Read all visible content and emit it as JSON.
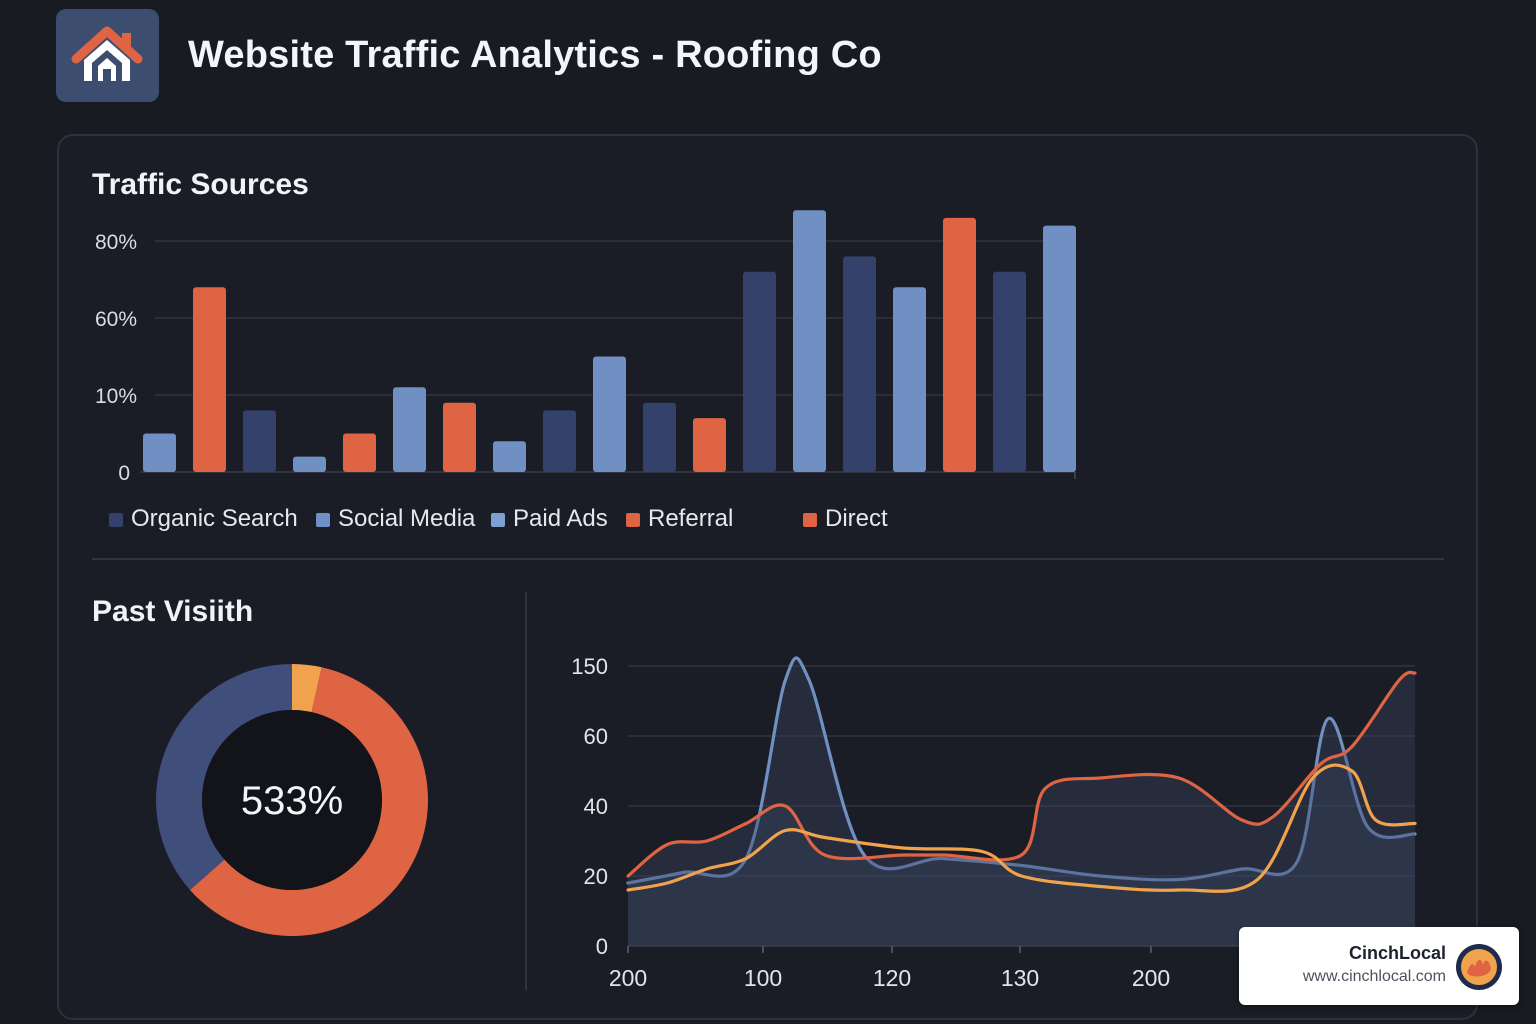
{
  "header": {
    "title": "Website Traffic Analytics - Roofing Co",
    "logo_icon": "house-roof-icon"
  },
  "colors": {
    "background": "#181b22",
    "navy": "#34416a",
    "steel_blue": "#7090c4",
    "orange": "#de6443",
    "amber": "#f0a24c"
  },
  "badge": {
    "name": "CinchLocal",
    "url": "www.cinchlocal.com",
    "icon": "cinchlocal-logo-icon"
  },
  "chart_data": [
    {
      "type": "bar",
      "title": "Traffic Sources",
      "y_ticks": [
        "80%",
        "60%",
        "10%",
        "0"
      ],
      "grid": true,
      "legend_position": "bottom",
      "legend": [
        {
          "label": "Organic Search",
          "color": "#34416a"
        },
        {
          "label": "Social Media",
          "color": "#6f8fc6"
        },
        {
          "label": "Paid Ads",
          "color": "#7e9fd2"
        },
        {
          "label": "Referral",
          "color": "#de6443"
        },
        {
          "label": "Direct",
          "color": "#de6443"
        }
      ],
      "bars": [
        {
          "level": 0.5,
          "color": "#7090c4"
        },
        {
          "level": 2.4,
          "color": "#de6443"
        },
        {
          "level": 0.8,
          "color": "#34416a"
        },
        {
          "level": 0.2,
          "color": "#7090c4"
        },
        {
          "level": 0.5,
          "color": "#de6443"
        },
        {
          "level": 1.1,
          "color": "#7090c4"
        },
        {
          "level": 0.9,
          "color": "#de6443"
        },
        {
          "level": 0.4,
          "color": "#7090c4"
        },
        {
          "level": 0.8,
          "color": "#34416a"
        },
        {
          "level": 1.5,
          "color": "#7090c4"
        },
        {
          "level": 0.9,
          "color": "#34416a"
        },
        {
          "level": 0.7,
          "color": "#de6443"
        },
        {
          "level": 2.6,
          "color": "#34416a"
        },
        {
          "level": 3.4,
          "color": "#7090c4"
        },
        {
          "level": 2.8,
          "color": "#34416a"
        },
        {
          "level": 2.4,
          "color": "#7090c4"
        },
        {
          "level": 3.3,
          "color": "#de6443"
        },
        {
          "level": 2.6,
          "color": "#34416a"
        },
        {
          "level": 3.2,
          "color": "#7090c4"
        }
      ]
    },
    {
      "type": "pie",
      "title": "Past Visiith",
      "center_label": "533%",
      "donut": true,
      "slices": [
        {
          "share": 0.035,
          "color": "#f0a24c"
        },
        {
          "share": 0.6,
          "color": "#de6443"
        },
        {
          "share": 0.365,
          "color": "#3f4e7a"
        }
      ]
    },
    {
      "type": "area",
      "y_ticks": [
        "150",
        "60",
        "40",
        "20",
        "0"
      ],
      "x_ticks": [
        "200",
        "100",
        "120",
        "130",
        "200"
      ],
      "x_range": [
        0,
        1
      ],
      "y_range": [
        0,
        4
      ],
      "grid": true,
      "series": [
        {
          "color": "#7090c4",
          "filled": true,
          "points": [
            [
              0,
              0.9
            ],
            [
              0.07,
              1.05
            ],
            [
              0.15,
              1.25
            ],
            [
              0.2,
              3.8
            ],
            [
              0.23,
              3.8
            ],
            [
              0.3,
              1.3
            ],
            [
              0.4,
              1.25
            ],
            [
              0.5,
              1.15
            ],
            [
              0.6,
              1.0
            ],
            [
              0.7,
              0.95
            ],
            [
              0.78,
              1.1
            ],
            [
              0.85,
              1.2
            ],
            [
              0.89,
              3.25
            ],
            [
              0.94,
              1.7
            ],
            [
              1,
              1.6
            ]
          ]
        },
        {
          "color": "#de6443",
          "filled": true,
          "points": [
            [
              0,
              1.0
            ],
            [
              0.05,
              1.45
            ],
            [
              0.1,
              1.5
            ],
            [
              0.15,
              1.75
            ],
            [
              0.2,
              2.0
            ],
            [
              0.25,
              1.3
            ],
            [
              0.35,
              1.3
            ],
            [
              0.4,
              1.3
            ],
            [
              0.5,
              1.3
            ],
            [
              0.53,
              2.25
            ],
            [
              0.6,
              2.4
            ],
            [
              0.7,
              2.4
            ],
            [
              0.78,
              1.8
            ],
            [
              0.82,
              1.85
            ],
            [
              0.88,
              2.6
            ],
            [
              0.92,
              2.85
            ],
            [
              0.98,
              3.8
            ],
            [
              1,
              3.9
            ]
          ]
        },
        {
          "color": "#f0a24c",
          "filled": false,
          "points": [
            [
              0,
              0.8
            ],
            [
              0.05,
              0.9
            ],
            [
              0.1,
              1.1
            ],
            [
              0.15,
              1.25
            ],
            [
              0.2,
              1.65
            ],
            [
              0.25,
              1.55
            ],
            [
              0.35,
              1.4
            ],
            [
              0.45,
              1.35
            ],
            [
              0.5,
              1.0
            ],
            [
              0.6,
              0.85
            ],
            [
              0.7,
              0.8
            ],
            [
              0.8,
              0.95
            ],
            [
              0.87,
              2.4
            ],
            [
              0.92,
              2.5
            ],
            [
              0.95,
              1.8
            ],
            [
              1,
              1.75
            ]
          ]
        }
      ]
    }
  ]
}
